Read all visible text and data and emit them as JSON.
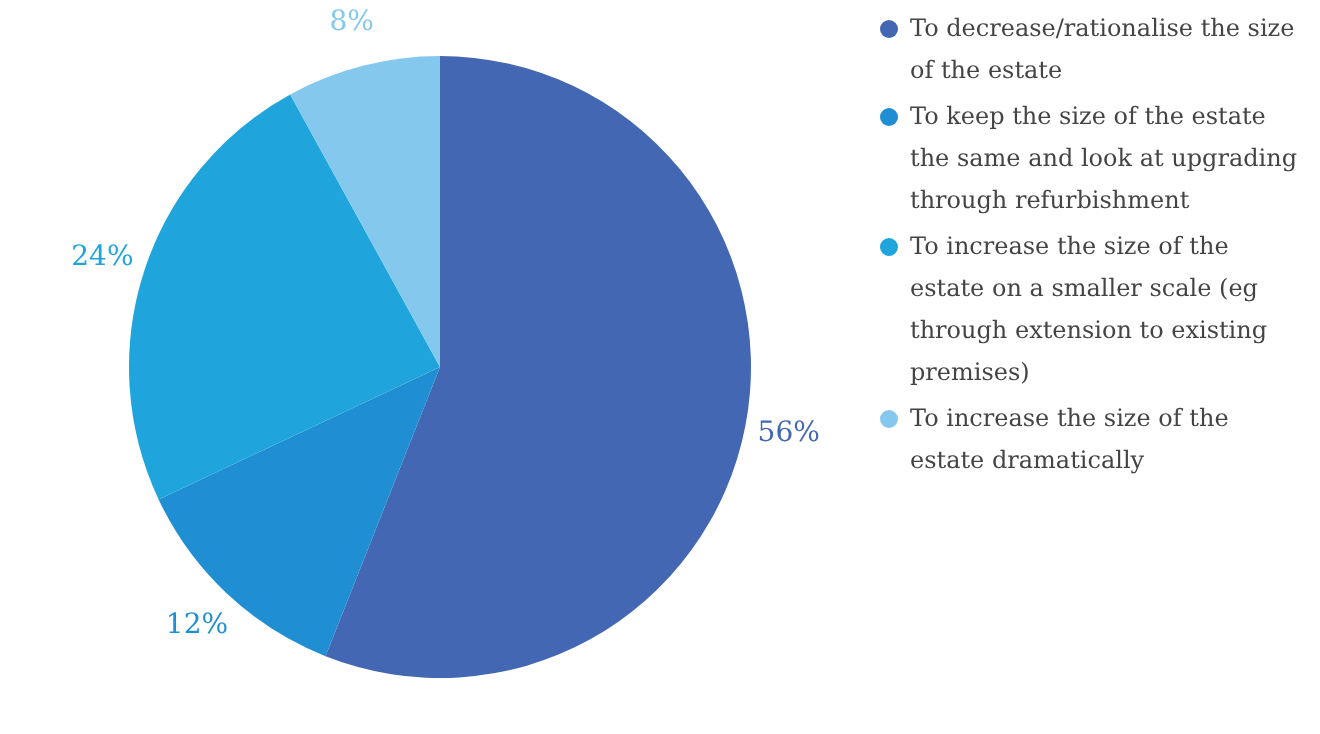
{
  "chart_data": {
    "type": "pie",
    "categories": [
      "To decrease/rationalise the size of the estate",
      "To keep the size of the estate the same and look at upgrading through refurbishment",
      "To increase the size of the estate on a smaller scale (eg through extension to existing premises)",
      "To increase the size of the estate dramatically"
    ],
    "values": [
      56,
      12,
      24,
      8
    ],
    "colors": [
      "#4467b3",
      "#1f8ed2",
      "#1fa5dc",
      "#85c8ee"
    ],
    "value_labels": [
      "56%",
      "12%",
      "24%",
      "8%"
    ],
    "legend": "right"
  }
}
